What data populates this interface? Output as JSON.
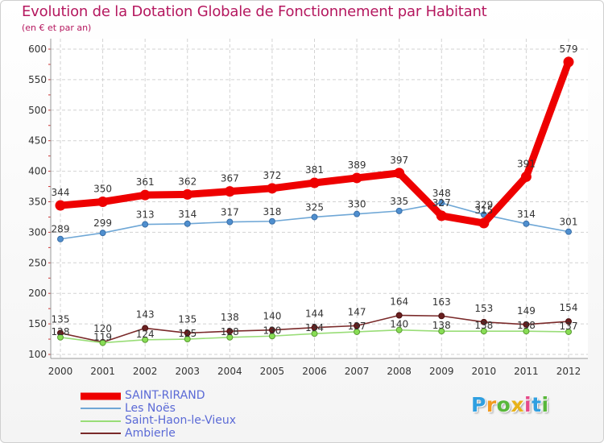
{
  "title": "Evolution de la Dotation Globale de Fonctionnement par Habitant",
  "subtitle": "(en € et par an)",
  "logo": {
    "letters": [
      "P",
      "r",
      "o",
      "x",
      "i",
      "t",
      "i"
    ],
    "colors": [
      "#2f9fe0",
      "#f29a1f",
      "#58b73a",
      "#e8b21a",
      "#e64a8a",
      "#2f9fe0",
      "#58b73a"
    ]
  },
  "chart_data": {
    "type": "line",
    "title": "Evolution de la Dotation Globale de Fonctionnement par Habitant",
    "subtitle": "(en € et par an)",
    "xlabel": "",
    "ylabel": "",
    "x": [
      "2000",
      "2001",
      "2002",
      "2003",
      "2004",
      "2005",
      "2006",
      "2007",
      "2008",
      "2009",
      "2010",
      "2011",
      "2012"
    ],
    "yticks": [
      100,
      150,
      200,
      250,
      300,
      350,
      400,
      450,
      500,
      550,
      600
    ],
    "ylim": [
      100,
      600
    ],
    "grid": true,
    "legend_position": "bottom-left",
    "series": [
      {
        "name": "SAINT-RIRAND",
        "color": "#ee0000",
        "values": [
          344,
          350,
          361,
          362,
          367,
          372,
          381,
          389,
          397,
          327,
          315,
          391,
          579
        ],
        "labels": [
          "344",
          "350",
          "361",
          "362",
          "367",
          "372",
          "381",
          "389",
          "397",
          "327",
          "315",
          "391",
          "579"
        ]
      },
      {
        "name": "Les Noës",
        "color": "#6fa7d6",
        "values": [
          289,
          299,
          313,
          314,
          317,
          318,
          325,
          330,
          335,
          348,
          329,
          314,
          301
        ],
        "labels": [
          "289",
          "299",
          "313",
          "314",
          "317",
          "318",
          "325",
          "330",
          "335",
          "348",
          "329",
          "314",
          "301"
        ]
      },
      {
        "name": "Saint-Haon-le-Vieux",
        "color": "#99dd77",
        "values": [
          128,
          119,
          124,
          125,
          128,
          130,
          134,
          137,
          140,
          138,
          138,
          138,
          137
        ],
        "labels": [
          "128",
          "119",
          "124",
          "125",
          "128",
          "130",
          "134",
          "137",
          "140",
          "138",
          "138",
          "138",
          "137"
        ]
      },
      {
        "name": "Ambierle",
        "color": "#7a2a2a",
        "values": [
          135,
          120,
          143,
          135,
          138,
          140,
          144,
          147,
          164,
          163,
          153,
          149,
          154
        ],
        "labels": [
          "135",
          "120",
          "143",
          "135",
          "138",
          "140",
          "144",
          "147",
          "164",
          "163",
          "153",
          "149",
          "154"
        ]
      }
    ]
  }
}
